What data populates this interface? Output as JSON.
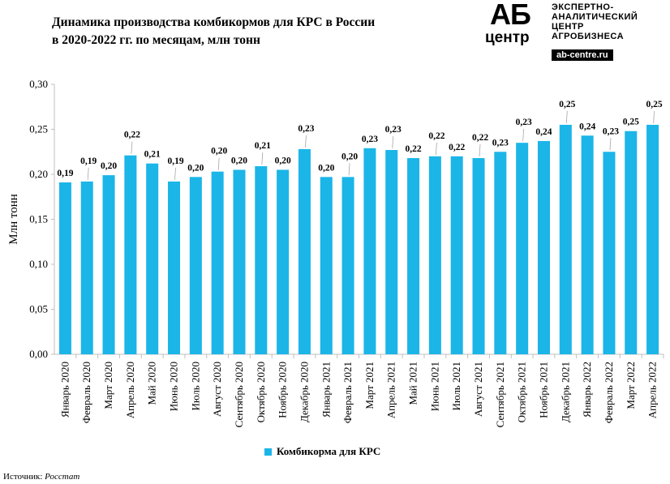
{
  "title_line1": "Динамика производства комбикормов для КРС в России",
  "title_line2": "в 2020-2022 гг. по месяцам, млн тонн",
  "logo": {
    "mark_top": "АБ",
    "mark_bottom": "центр",
    "line1": "ЭКСПЕРТНО-",
    "line2": "АНАЛИТИЧЕСКИЙ",
    "line3": "ЦЕНТР",
    "line4": "АГРОБИЗНЕСА",
    "url": "ab-centre.ru"
  },
  "source_label": "Источник:",
  "source_value": "Росстат",
  "colors": {
    "bar": "#1BB5E8",
    "axis": "#bfbfbf"
  },
  "chart_data": {
    "type": "bar",
    "title": "Динамика производства комбикормов для КРС в России в 2020-2022 гг. по месяцам, млн тонн",
    "ylabel": "Млн тонн",
    "xlabel": "",
    "ylim": [
      0,
      0.3
    ],
    "yticks": [
      "0,00",
      "0,05",
      "0,10",
      "0,15",
      "0,20",
      "0,25",
      "0,30"
    ],
    "ytick_values": [
      0,
      0.05,
      0.1,
      0.15,
      0.2,
      0.25,
      0.3
    ],
    "grid": false,
    "legend": "bottom",
    "series": [
      {
        "name": "Комбикорма для КРС",
        "values": [
          0.191,
          0.192,
          0.199,
          0.221,
          0.212,
          0.192,
          0.197,
          0.203,
          0.205,
          0.209,
          0.205,
          0.228,
          0.197,
          0.197,
          0.229,
          0.227,
          0.218,
          0.22,
          0.22,
          0.218,
          0.225,
          0.235,
          0.237,
          0.255,
          0.243,
          0.225,
          0.248,
          0.255
        ],
        "labels": [
          "0,19",
          "0,19",
          "0,20",
          "0,22",
          "0,21",
          "0,19",
          "0,20",
          "0,20",
          "0,20",
          "0,21",
          "0,20",
          "0,23",
          "0,20",
          "0,20",
          "0,23",
          "0,23",
          "0,22",
          "0,22",
          "0,22",
          "0,22",
          "0,23",
          "0,23",
          "0,24",
          "0,25",
          "0,24",
          "0,23",
          "0,25",
          "0,25"
        ]
      }
    ],
    "categories": [
      "Январь 2020",
      "Февраль 2020",
      "Март 2020",
      "Апрель 2020",
      "Май 2020",
      "Июнь 2020",
      "Июль 2020",
      "Август 2020",
      "Сентябрь 2020",
      "Октябрь 2020",
      "Ноябрь 2020",
      "Декабрь 2020",
      "Январь 2021",
      "Февраль 2021",
      "Март 2021",
      "Апрель 2021",
      "Май 2021",
      "Июнь 2021",
      "Июль 2021",
      "Август 2021",
      "Сентябрь 2021",
      "Октябрь 2021",
      "Ноябрь 2021",
      "Декабрь 2021",
      "Январь 2022",
      "Февраль 2022",
      "Март 2022",
      "Апрель 2022"
    ]
  }
}
